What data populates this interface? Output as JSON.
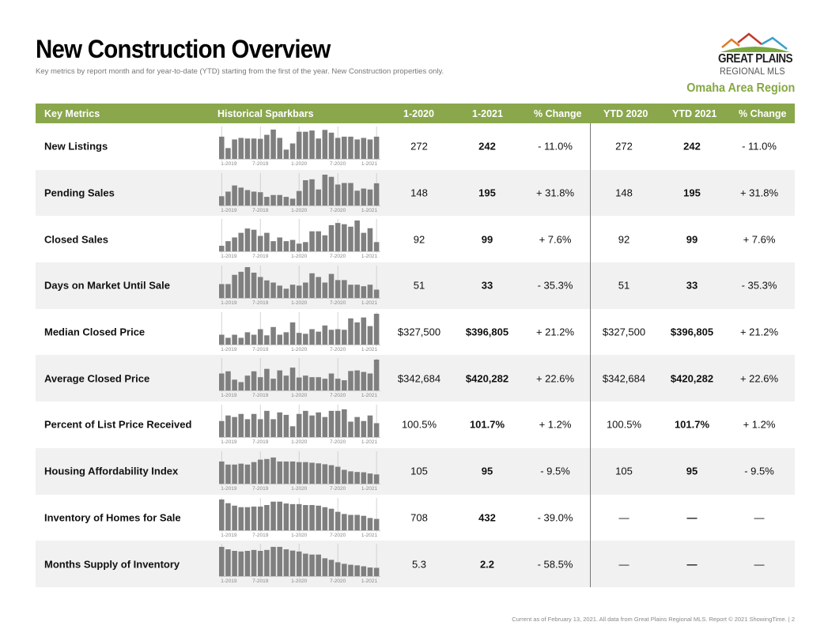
{
  "header": {
    "title": "New Construction Overview",
    "subtitle": "Key metrics by report month and for year-to-date (YTD) starting from the first of the year. New Construction properties only.",
    "logo_line1": "GREAT PLAINS",
    "logo_line2": "REGIONAL MLS",
    "region": "Omaha Area Region",
    "logo_colors": [
      "#e07b2a",
      "#c0392b",
      "#3aa0c9",
      "#7aa83e"
    ]
  },
  "table": {
    "header_color": "#8aa74c",
    "columns": [
      "Key Metrics",
      "Historical Sparkbars",
      "1-2020",
      "1-2021",
      "% Change",
      "YTD 2020",
      "YTD 2021",
      "% Change"
    ]
  },
  "footer": "Current as of February 13, 2021. All data from Great Plains Regional MLS. Report © 2021 ShowingTime.  |  2",
  "chart_data": {
    "type": "table",
    "title": "New Construction Overview",
    "spark_type": "bar",
    "spark_x_ticks": [
      "1-2019",
      "7-2019",
      "1-2020",
      "7-2020",
      "1-2021"
    ],
    "spark_months": [
      "1-2019",
      "2-2019",
      "3-2019",
      "4-2019",
      "5-2019",
      "6-2019",
      "7-2019",
      "8-2019",
      "9-2019",
      "10-2019",
      "11-2019",
      "12-2019",
      "1-2020",
      "2-2020",
      "3-2020",
      "4-2020",
      "5-2020",
      "6-2020",
      "7-2020",
      "8-2020",
      "9-2020",
      "10-2020",
      "11-2020",
      "12-2020",
      "1-2021"
    ],
    "spark_color": "#7f7f7f",
    "rows": [
      {
        "metric": "New Listings",
        "m2020": "272",
        "m2021": "242",
        "mchg": "- 11.0%",
        "y2020": "272",
        "y2021": "242",
        "ychg": "- 11.0%",
        "spark": [
          0.72,
          0.35,
          0.63,
          0.68,
          0.66,
          0.66,
          0.65,
          0.78,
          0.95,
          0.68,
          0.3,
          0.5,
          0.88,
          0.88,
          0.92,
          0.66,
          0.94,
          0.85,
          0.68,
          0.72,
          0.72,
          0.63,
          0.68,
          0.63,
          0.72
        ]
      },
      {
        "metric": "Pending Sales",
        "m2020": "148",
        "m2021": "195",
        "mchg": "+ 31.8%",
        "y2020": "148",
        "y2021": "195",
        "ychg": "+ 31.8%",
        "spark": [
          0.3,
          0.45,
          0.65,
          0.58,
          0.5,
          0.45,
          0.43,
          0.28,
          0.34,
          0.34,
          0.28,
          0.22,
          0.47,
          0.82,
          0.85,
          0.52,
          1.0,
          0.93,
          0.68,
          0.73,
          0.73,
          0.48,
          0.55,
          0.52,
          0.72
        ]
      },
      {
        "metric": "Closed Sales",
        "m2020": "92",
        "m2021": "99",
        "mchg": "+ 7.6%",
        "y2020": "92",
        "y2021": "99",
        "ychg": "+ 7.6%",
        "spark": [
          0.18,
          0.33,
          0.45,
          0.6,
          0.74,
          0.7,
          0.5,
          0.6,
          0.33,
          0.45,
          0.33,
          0.37,
          0.25,
          0.3,
          0.65,
          0.65,
          0.52,
          0.85,
          0.92,
          0.88,
          0.8,
          1.0,
          0.6,
          0.75,
          0.3
        ]
      },
      {
        "metric": "Days on Market Until Sale",
        "m2020": "51",
        "m2021": "33",
        "mchg": "- 35.3%",
        "y2020": "51",
        "y2021": "33",
        "ychg": "- 35.3%",
        "spark": [
          0.45,
          0.45,
          0.75,
          0.85,
          1.0,
          0.82,
          0.68,
          0.57,
          0.5,
          0.4,
          0.3,
          0.43,
          0.4,
          0.5,
          0.8,
          0.68,
          0.5,
          0.78,
          0.58,
          0.58,
          0.43,
          0.43,
          0.38,
          0.43,
          0.27
        ]
      },
      {
        "metric": "Median Closed Price",
        "m2020": "$327,500",
        "m2021": "$396,805",
        "mchg": "+ 21.2%",
        "y2020": "$327,500",
        "y2021": "$396,805",
        "ychg": "+ 21.2%",
        "spark": [
          0.32,
          0.22,
          0.32,
          0.22,
          0.4,
          0.32,
          0.5,
          0.3,
          0.57,
          0.32,
          0.4,
          0.72,
          0.38,
          0.35,
          0.5,
          0.42,
          0.62,
          0.48,
          0.5,
          0.48,
          0.85,
          0.72,
          0.88,
          0.6,
          1.0
        ]
      },
      {
        "metric": "Average Closed Price",
        "m2020": "$342,684",
        "m2021": "$420,282",
        "mchg": "+ 22.6%",
        "y2020": "$342,684",
        "y2021": "$420,282",
        "ychg": "+ 22.6%",
        "spark": [
          0.55,
          0.62,
          0.35,
          0.27,
          0.48,
          0.62,
          0.43,
          0.7,
          0.38,
          0.65,
          0.48,
          0.74,
          0.42,
          0.48,
          0.43,
          0.43,
          0.38,
          0.55,
          0.38,
          0.33,
          0.63,
          0.65,
          0.6,
          0.55,
          1.0
        ]
      },
      {
        "metric": "Percent of List Price Received",
        "m2020": "100.5%",
        "m2021": "101.7%",
        "mchg": "+ 1.2%",
        "y2020": "100.5%",
        "y2021": "101.7%",
        "ychg": "+ 1.2%",
        "spark": [
          0.52,
          0.7,
          0.65,
          0.75,
          0.58,
          0.75,
          0.58,
          0.85,
          0.58,
          0.8,
          0.72,
          0.35,
          0.75,
          0.85,
          0.7,
          0.8,
          0.65,
          0.85,
          0.85,
          0.9,
          0.5,
          0.65,
          0.52,
          0.7,
          0.45
        ]
      },
      {
        "metric": "Housing Affordability Index",
        "m2020": "105",
        "m2021": "95",
        "mchg": "- 9.5%",
        "y2020": "105",
        "y2021": "95",
        "ychg": "- 9.5%",
        "spark": [
          0.72,
          0.62,
          0.62,
          0.65,
          0.62,
          0.7,
          0.78,
          0.8,
          0.85,
          0.72,
          0.72,
          0.72,
          0.7,
          0.7,
          0.68,
          0.66,
          0.63,
          0.6,
          0.55,
          0.45,
          0.4,
          0.38,
          0.37,
          0.33,
          0.3
        ]
      },
      {
        "metric": "Inventory of Homes for Sale",
        "m2020": "708",
        "m2021": "432",
        "mchg": "- 39.0%",
        "y2020": "—",
        "y2021": "—",
        "ychg": "—",
        "spark": [
          1.0,
          0.88,
          0.8,
          0.75,
          0.75,
          0.77,
          0.77,
          0.82,
          0.93,
          0.93,
          0.87,
          0.85,
          0.85,
          0.82,
          0.82,
          0.8,
          0.75,
          0.7,
          0.6,
          0.53,
          0.5,
          0.5,
          0.47,
          0.4,
          0.37
        ]
      },
      {
        "metric": "Months Supply of Inventory",
        "m2020": "5.3",
        "m2021": "2.2",
        "mchg": "- 58.5%",
        "y2020": "—",
        "y2021": "—",
        "ychg": "—",
        "spark": [
          0.95,
          0.87,
          0.82,
          0.8,
          0.82,
          0.85,
          0.82,
          0.85,
          0.95,
          0.95,
          0.87,
          0.83,
          0.8,
          0.73,
          0.7,
          0.7,
          0.58,
          0.53,
          0.45,
          0.4,
          0.37,
          0.35,
          0.32,
          0.28,
          0.27
        ]
      }
    ]
  }
}
